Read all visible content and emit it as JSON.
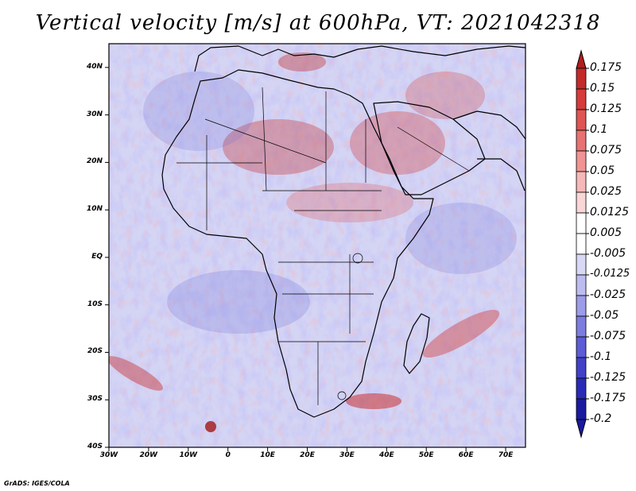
{
  "title": "Vertical velocity [m/s] at 600hPa, VT: 2021042318",
  "footer": "GrADS: IGES/COLA",
  "map": {
    "projection": "latlon",
    "lon_range": [
      -30,
      75
    ],
    "lat_range": [
      -40,
      45
    ],
    "lat_ticks": [
      {
        "value": 40,
        "label": "40N"
      },
      {
        "value": 30,
        "label": "30N"
      },
      {
        "value": 20,
        "label": "20N"
      },
      {
        "value": 10,
        "label": "10N"
      },
      {
        "value": 0,
        "label": "EQ"
      },
      {
        "value": -10,
        "label": "10S"
      },
      {
        "value": -20,
        "label": "20S"
      },
      {
        "value": -30,
        "label": "30S"
      },
      {
        "value": -40,
        "label": "40S"
      }
    ],
    "lon_ticks": [
      {
        "value": -30,
        "label": "30W"
      },
      {
        "value": -20,
        "label": "20W"
      },
      {
        "value": -10,
        "label": "10W"
      },
      {
        "value": 0,
        "label": "0"
      },
      {
        "value": 10,
        "label": "10E"
      },
      {
        "value": 20,
        "label": "20E"
      },
      {
        "value": 30,
        "label": "30E"
      },
      {
        "value": 40,
        "label": "40E"
      },
      {
        "value": 50,
        "label": "50E"
      },
      {
        "value": 60,
        "label": "60E"
      },
      {
        "value": 70,
        "label": "70E"
      }
    ],
    "colorbar": [
      {
        "label": "0.175",
        "color": "#b01e1e"
      },
      {
        "label": "0.15",
        "color": "#c42a2a"
      },
      {
        "label": "0.125",
        "color": "#d63a3a"
      },
      {
        "label": "0.1",
        "color": "#e05454"
      },
      {
        "label": "0.075",
        "color": "#e87272"
      },
      {
        "label": "0.05",
        "color": "#f09494"
      },
      {
        "label": "0.025",
        "color": "#f6b8b8"
      },
      {
        "label": "0.0125",
        "color": "#fad6d6"
      },
      {
        "label": "0.005",
        "color": "#ffffff"
      },
      {
        "label": "-0.005",
        "color": "#ffffff"
      },
      {
        "label": "-0.0125",
        "color": "#d8d8f6"
      },
      {
        "label": "-0.025",
        "color": "#bcbcf0"
      },
      {
        "label": "-0.05",
        "color": "#9c9ce8"
      },
      {
        "label": "-0.075",
        "color": "#7c7ce0"
      },
      {
        "label": "-0.1",
        "color": "#5c5cd6"
      },
      {
        "label": "-0.125",
        "color": "#4040c8"
      },
      {
        "label": "-0.175",
        "color": "#2a2ab8"
      },
      {
        "label": "-0.2",
        "color": "#1a1aa0"
      }
    ],
    "colors": {
      "upward_max": "#b01e1e",
      "downward_max": "#1a1aa0",
      "neutral": "#ffffff"
    }
  }
}
